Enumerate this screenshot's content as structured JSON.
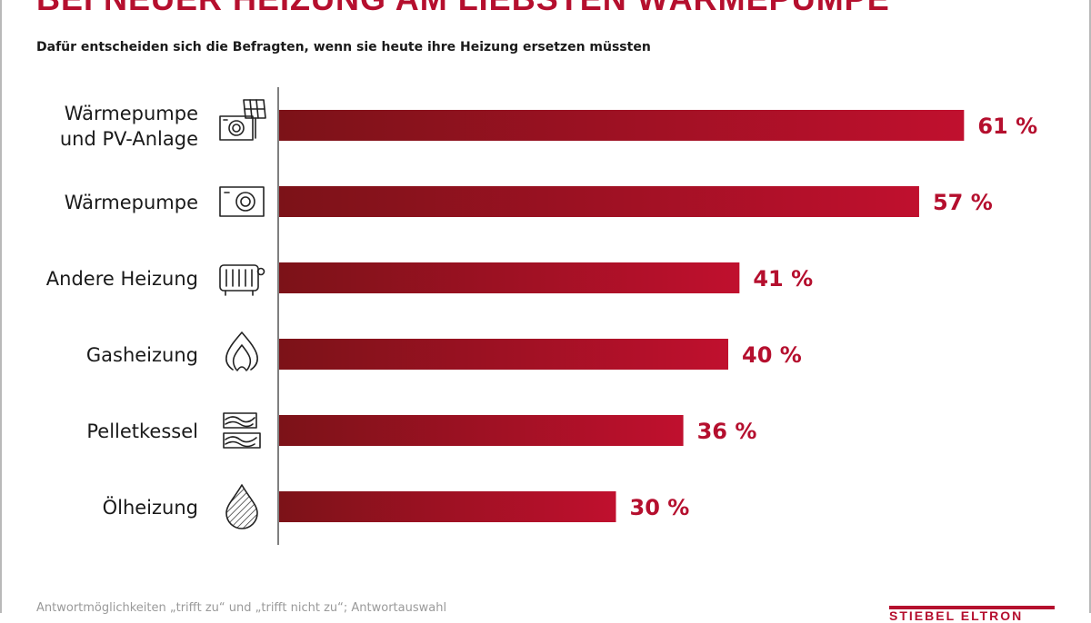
{
  "header": {
    "title": "BEI NEUER HEIZUNG AM LIEBSTEN WÄRMEPUMPE",
    "subtitle": "Dafür entscheiden sich die Befragten, wenn sie heute ihre Heizung ersetzen müssten"
  },
  "chart_data": {
    "type": "bar",
    "orientation": "horizontal",
    "title": "BEI NEUER HEIZUNG AM LIEBSTEN WÄRMEPUMPE",
    "subtitle": "Dafür entscheiden sich die Befragten, wenn sie heute ihre Heizung ersetzen müssten",
    "categories": [
      [
        "Wärmepumpe",
        "und PV-Anlage"
      ],
      [
        "Wärmepumpe"
      ],
      [
        "Andere Heizung"
      ],
      [
        "Gasheizung"
      ],
      [
        "Pelletkessel"
      ],
      [
        "Ölheizung"
      ]
    ],
    "icons": [
      "heat-pump-solar-icon",
      "heat-pump-icon",
      "radiator-icon",
      "gas-flame-icon",
      "wood-pellet-icon",
      "oil-drop-icon"
    ],
    "values": [
      61,
      57,
      41,
      40,
      36,
      30
    ],
    "value_labels": [
      "61 %",
      "57 %",
      "41 %",
      "40 %",
      "36 %",
      "30 %"
    ],
    "unit": "%",
    "xlim": [
      0,
      100
    ],
    "grid": false,
    "xlabel": "",
    "ylabel": "",
    "colors": {
      "bar_dark": "#7c1218",
      "bar_light": "#c0102e",
      "label": "#b50f2e"
    }
  },
  "footer": {
    "note": "Antwortmöglichkeiten „trifft zu“ und „trifft nicht zu“; Antwortauswahl",
    "brand": "STIEBEL ELTRON"
  }
}
